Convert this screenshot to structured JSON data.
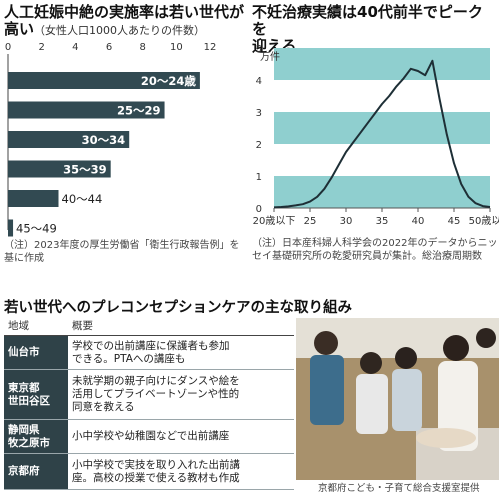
{
  "chart_data": [
    {
      "type": "bar",
      "orientation": "horizontal",
      "title": "人工妊娠中絶の実施率は若い世代が高い",
      "title_line1": "人工妊娠中絶の実施率は若い世代が",
      "title_line2": "高い",
      "subtitle": "（女性人口1000人あたりの件数）",
      "categories": [
        "20～24歳",
        "25～29",
        "30～34",
        "35～39",
        "40～44",
        "45～49"
      ],
      "values": [
        11.4,
        9.3,
        7.2,
        6.1,
        3.0,
        0.3
      ],
      "xlim": [
        0,
        12
      ],
      "x_ticks": [
        "0",
        "2",
        "4",
        "6",
        "8",
        "10",
        "12"
      ],
      "bar_color": "#324a52",
      "labels_inside": [
        true,
        true,
        true,
        true,
        false,
        false
      ],
      "note": "（注）2023年度の厚生労働省「衛生行政報告例」を基に作成"
    },
    {
      "type": "line",
      "title": "不妊治療実績は40代前半でピークを迎える",
      "title_line1": "不妊治療実績は40代前半でピークを",
      "title_line2": "迎える",
      "y_unit": "万件",
      "ylim": [
        0,
        5
      ],
      "y_ticks": [
        "0",
        "1",
        "2",
        "3",
        "4",
        "5"
      ],
      "x_ticks": [
        "20歳以下",
        "25",
        "30",
        "35",
        "40",
        "45",
        "50歳以上"
      ],
      "x_tick_values": [
        20,
        25,
        30,
        35,
        40,
        45,
        50
      ],
      "x": [
        20,
        21,
        22,
        23,
        24,
        25,
        26,
        27,
        28,
        29,
        30,
        31,
        32,
        33,
        34,
        35,
        36,
        37,
        38,
        39,
        40,
        41,
        42,
        43,
        44,
        45,
        46,
        47,
        48,
        49,
        50
      ],
      "values": [
        0.02,
        0.03,
        0.05,
        0.08,
        0.12,
        0.2,
        0.35,
        0.6,
        0.95,
        1.35,
        1.75,
        2.05,
        2.35,
        2.65,
        2.95,
        3.25,
        3.5,
        3.8,
        4.05,
        4.35,
        4.28,
        4.15,
        4.6,
        3.4,
        2.3,
        1.4,
        0.75,
        0.35,
        0.15,
        0.06,
        0.03
      ],
      "band_color": "#8fcfcf",
      "line_color": "#1e2f36",
      "note": "（注）日本産科婦人科学会の2022年のデータからニッセイ基礎研究所の乾愛研究員が集計。総治療周期数"
    }
  ],
  "section": {
    "title": "若い世代へのプレコンセプションケアの主な取り組み",
    "header_region": "地域",
    "header_desc": "概要",
    "rows": [
      {
        "region": "仙台市",
        "desc": "学校での出前講座に保護者も参加\nできる。PTAへの講座も"
      },
      {
        "region": "東京都\n世田谷区",
        "desc": "未就学期の親子向けにダンスや絵を\n活用してプライベートゾーンや性的\n同意を教える"
      },
      {
        "region": "静岡県\n牧之原市",
        "desc": "小中学校や幼稚園などで出前講座"
      },
      {
        "region": "京都府",
        "desc": "小中学校で実技を取り入れた出前講\n座。高校の授業で使える教材も作成"
      }
    ]
  },
  "photo": {
    "caption": "京都府こども・子育て総合支援室提供"
  }
}
